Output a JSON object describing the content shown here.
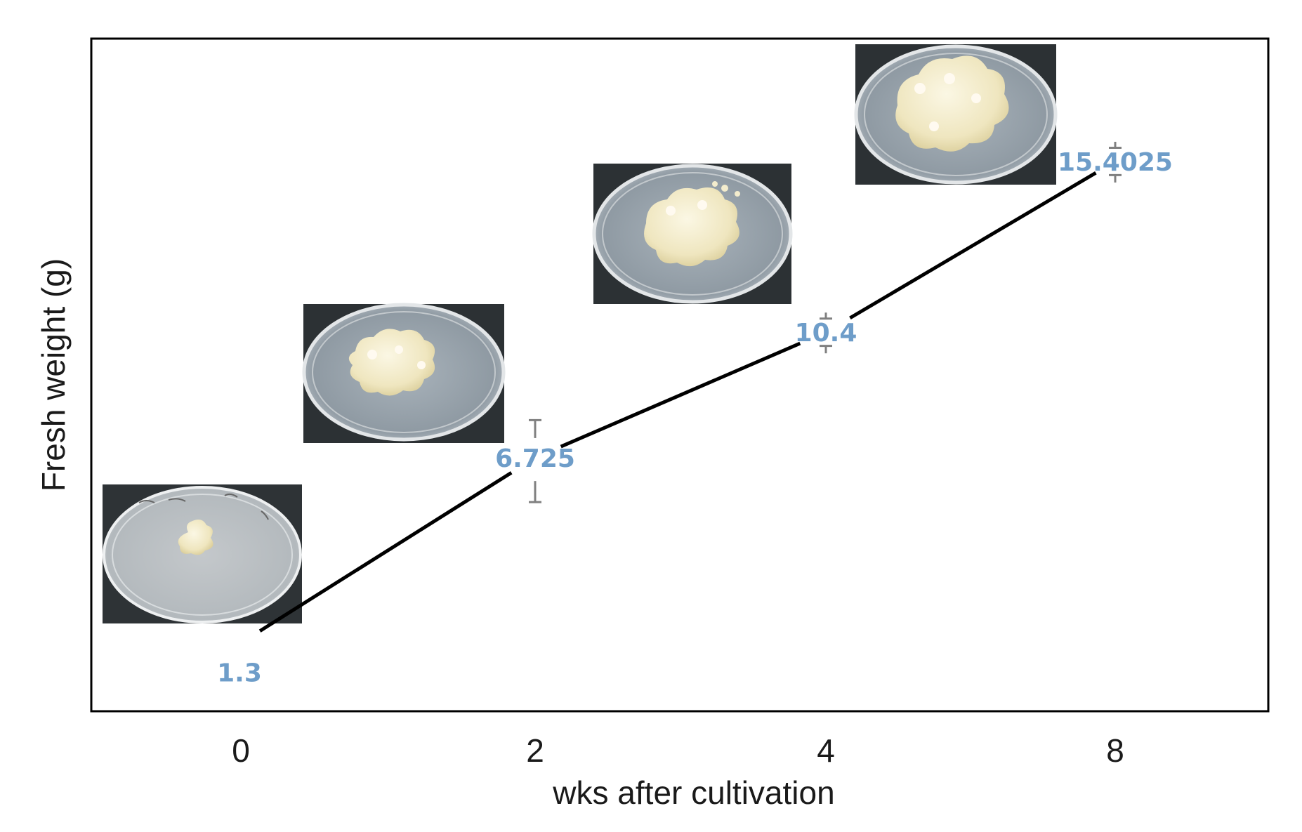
{
  "chart_data": {
    "type": "line",
    "title": "",
    "xlabel": "wks after cultivation",
    "ylabel": "Fresh weight (g)",
    "categories": [
      "0",
      "2",
      "4",
      "8"
    ],
    "series": [
      {
        "values": [
          1.3,
          6.725,
          10.4,
          15.4025
        ],
        "error_plus": [
          0,
          1.1,
          0.4,
          0.4
        ],
        "error_minus": [
          0,
          1.3,
          0.4,
          0.4
        ]
      }
    ],
    "data_labels": [
      "1.3",
      "6.725",
      "10.4",
      "15.4025"
    ],
    "ylim": [
      -0.7,
      19.0
    ],
    "grid": false,
    "legend": "none",
    "insets": [
      "petri-dish photo at week 0",
      "petri-dish photo at week 2",
      "petri-dish photo at week 4",
      "petri-dish photo at week 8"
    ]
  },
  "colors": {
    "line": "#000000",
    "label": "#6e9dc9",
    "errorbar": "#808080",
    "frame": "#000000"
  }
}
